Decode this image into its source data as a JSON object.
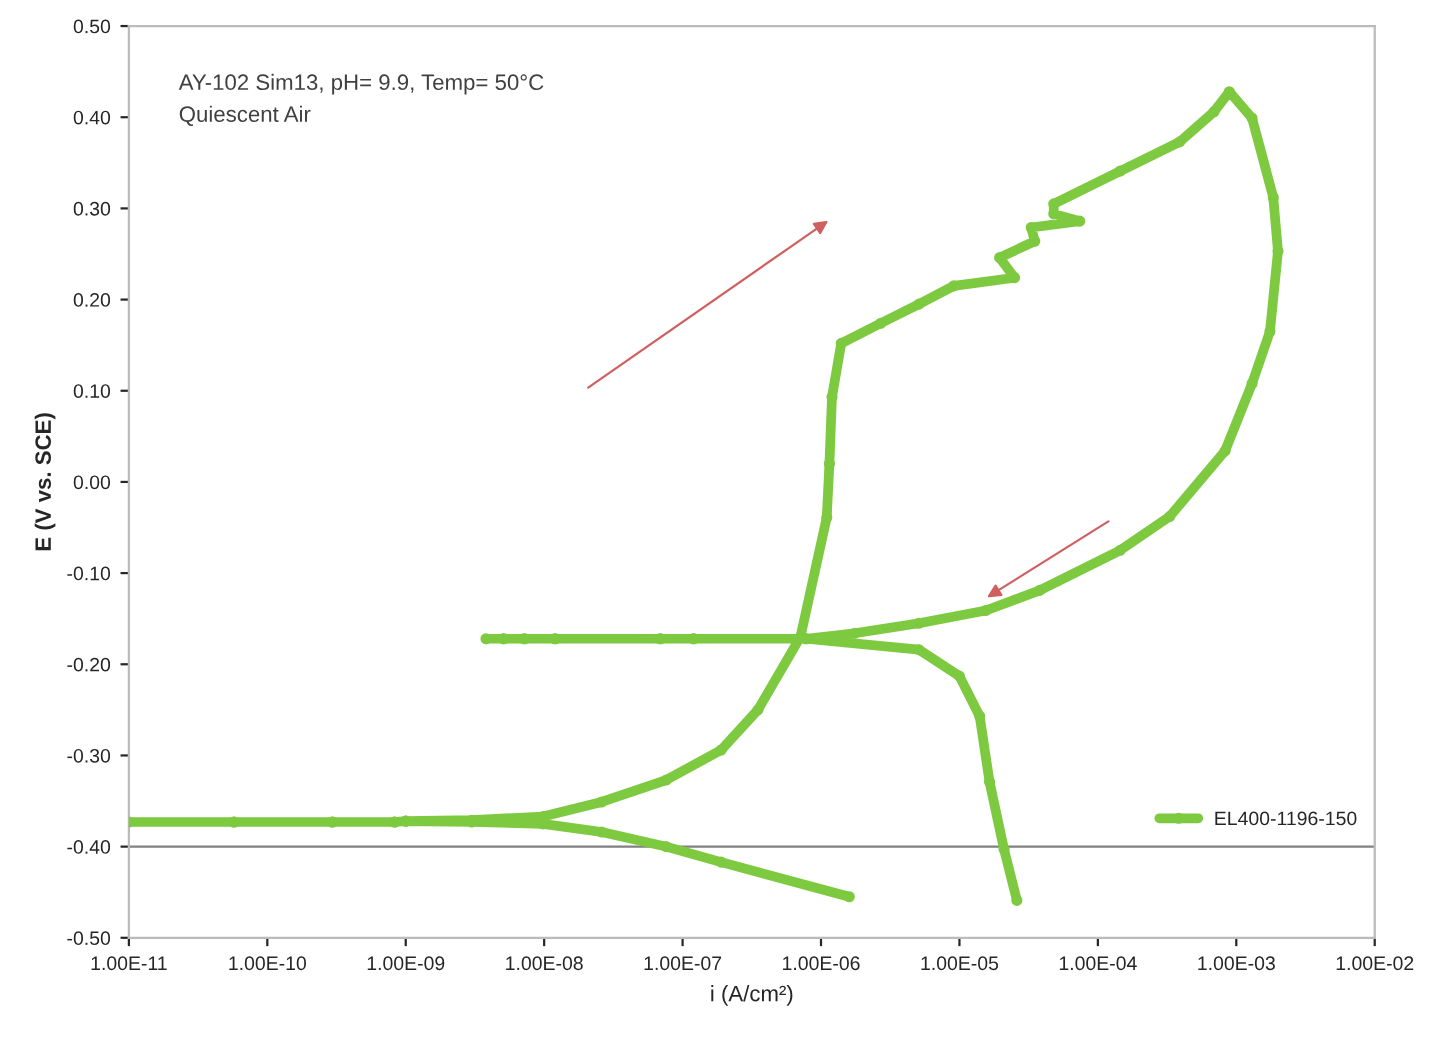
{
  "chart_data": {
    "type": "line",
    "xlabel": "i (A/cm²)",
    "ylabel": "E (V vs. SCE)",
    "annotations": [
      "AY-102 Sim13, pH= 9.9, Temp= 50°C",
      "Quiescent Air"
    ],
    "series": [
      {
        "name": "EL400-1196-150",
        "color": "#7dc940",
        "x": [
          1.6e-06,
          1.9e-07,
          7.6e-08,
          2.6e-08,
          9.8e-09,
          3e-09,
          1e-09,
          8.3e-10,
          2.95e-10,
          5.75e-11,
          1e-11,
          5.75e-11,
          2.95e-10,
          8.3e-10,
          1e-09,
          3e-09,
          9.8e-09,
          2.6e-08,
          7.6e-08,
          1.9e-07,
          3.5e-07,
          7.1e-07,
          1.1e-06,
          1.15e-06,
          1.2e-06,
          1.4e-06,
          2.7e-06,
          5.1e-06,
          9.1e-06,
          2.5e-05,
          1.95e-05,
          3.5e-05,
          3.3e-05,
          7.4e-05,
          4.8e-05,
          4.8e-05,
          0.000145,
          0.00039,
          0.00069,
          0.00089,
          0.0013,
          0.00185,
          0.002,
          0.00175,
          0.0013,
          0.00083,
          0.00033,
          0.000145,
          3.8e-05,
          1.55e-05,
          5.1e-06,
          1.75e-06,
          7.8e-07,
          1.2e-07,
          6.9e-08,
          1.2e-08,
          7.2e-09,
          5.1e-09,
          3.8e-09,
          5.1e-09,
          7.2e-09,
          1.2e-08,
          6.9e-08,
          1.2e-07,
          7.8e-07,
          5.1e-06,
          1e-05,
          1.4e-05,
          1.65e-05,
          2.1e-05,
          2.6e-05
        ],
        "values": [
          -0.455,
          -0.417,
          -0.4,
          -0.384,
          -0.375,
          -0.373,
          -0.372,
          -0.373,
          -0.373,
          -0.373,
          -0.373,
          -0.373,
          -0.373,
          -0.373,
          -0.372,
          -0.371,
          -0.367,
          -0.351,
          -0.327,
          -0.294,
          -0.25,
          -0.17,
          -0.039,
          0.02,
          0.093,
          0.152,
          0.174,
          0.195,
          0.215,
          0.224,
          0.246,
          0.264,
          0.279,
          0.286,
          0.294,
          0.305,
          0.341,
          0.373,
          0.406,
          0.428,
          0.399,
          0.312,
          0.253,
          0.165,
          0.108,
          0.034,
          -0.038,
          -0.075,
          -0.119,
          -0.141,
          -0.155,
          -0.166,
          -0.172,
          -0.172,
          -0.172,
          -0.172,
          -0.172,
          -0.172,
          -0.172,
          -0.172,
          -0.172,
          -0.172,
          -0.172,
          -0.172,
          -0.172,
          -0.184,
          -0.213,
          -0.257,
          -0.329,
          -0.403,
          -0.459
        ]
      }
    ],
    "log": "x",
    "marker": "circle",
    "legend": "bottom right",
    "grid": false,
    "ref_lines": [
      {
        "axis": "y",
        "value": -0.4,
        "color": "#808080"
      }
    ],
    "xlim": [
      1e-11,
      0.01
    ],
    "xticks": [
      {
        "value": 1e-11,
        "label": "1.00E-11"
      },
      {
        "value": 1e-10,
        "label": "1.00E-10"
      },
      {
        "value": 1e-09,
        "label": "1.00E-09"
      },
      {
        "value": 1e-08,
        "label": "1.00E-08"
      },
      {
        "value": 1e-07,
        "label": "1.00E-07"
      },
      {
        "value": 1e-06,
        "label": "1.00E-06"
      },
      {
        "value": 1e-05,
        "label": "1.00E-05"
      },
      {
        "value": 0.0001,
        "label": "1.00E-04"
      },
      {
        "value": 0.001,
        "label": "1.00E-03"
      },
      {
        "value": 0.01,
        "label": "1.00E-02"
      }
    ],
    "ylim": [
      -0.5,
      0.5
    ],
    "yticks": [
      {
        "value": -0.5,
        "label": "-0.50"
      },
      {
        "value": -0.4,
        "label": "-0.40"
      },
      {
        "value": -0.3,
        "label": "-0.30"
      },
      {
        "value": -0.2,
        "label": "-0.20"
      },
      {
        "value": -0.1,
        "label": "-0.10"
      },
      {
        "value": 0,
        "label": "0.00"
      },
      {
        "value": 0.1,
        "label": "0.10"
      },
      {
        "value": 0.2,
        "label": "0.20"
      },
      {
        "value": 0.3,
        "label": "0.30"
      },
      {
        "value": 0.4,
        "label": "0.40"
      },
      {
        "value": 0.5,
        "label": "0.50"
      }
    ]
  }
}
